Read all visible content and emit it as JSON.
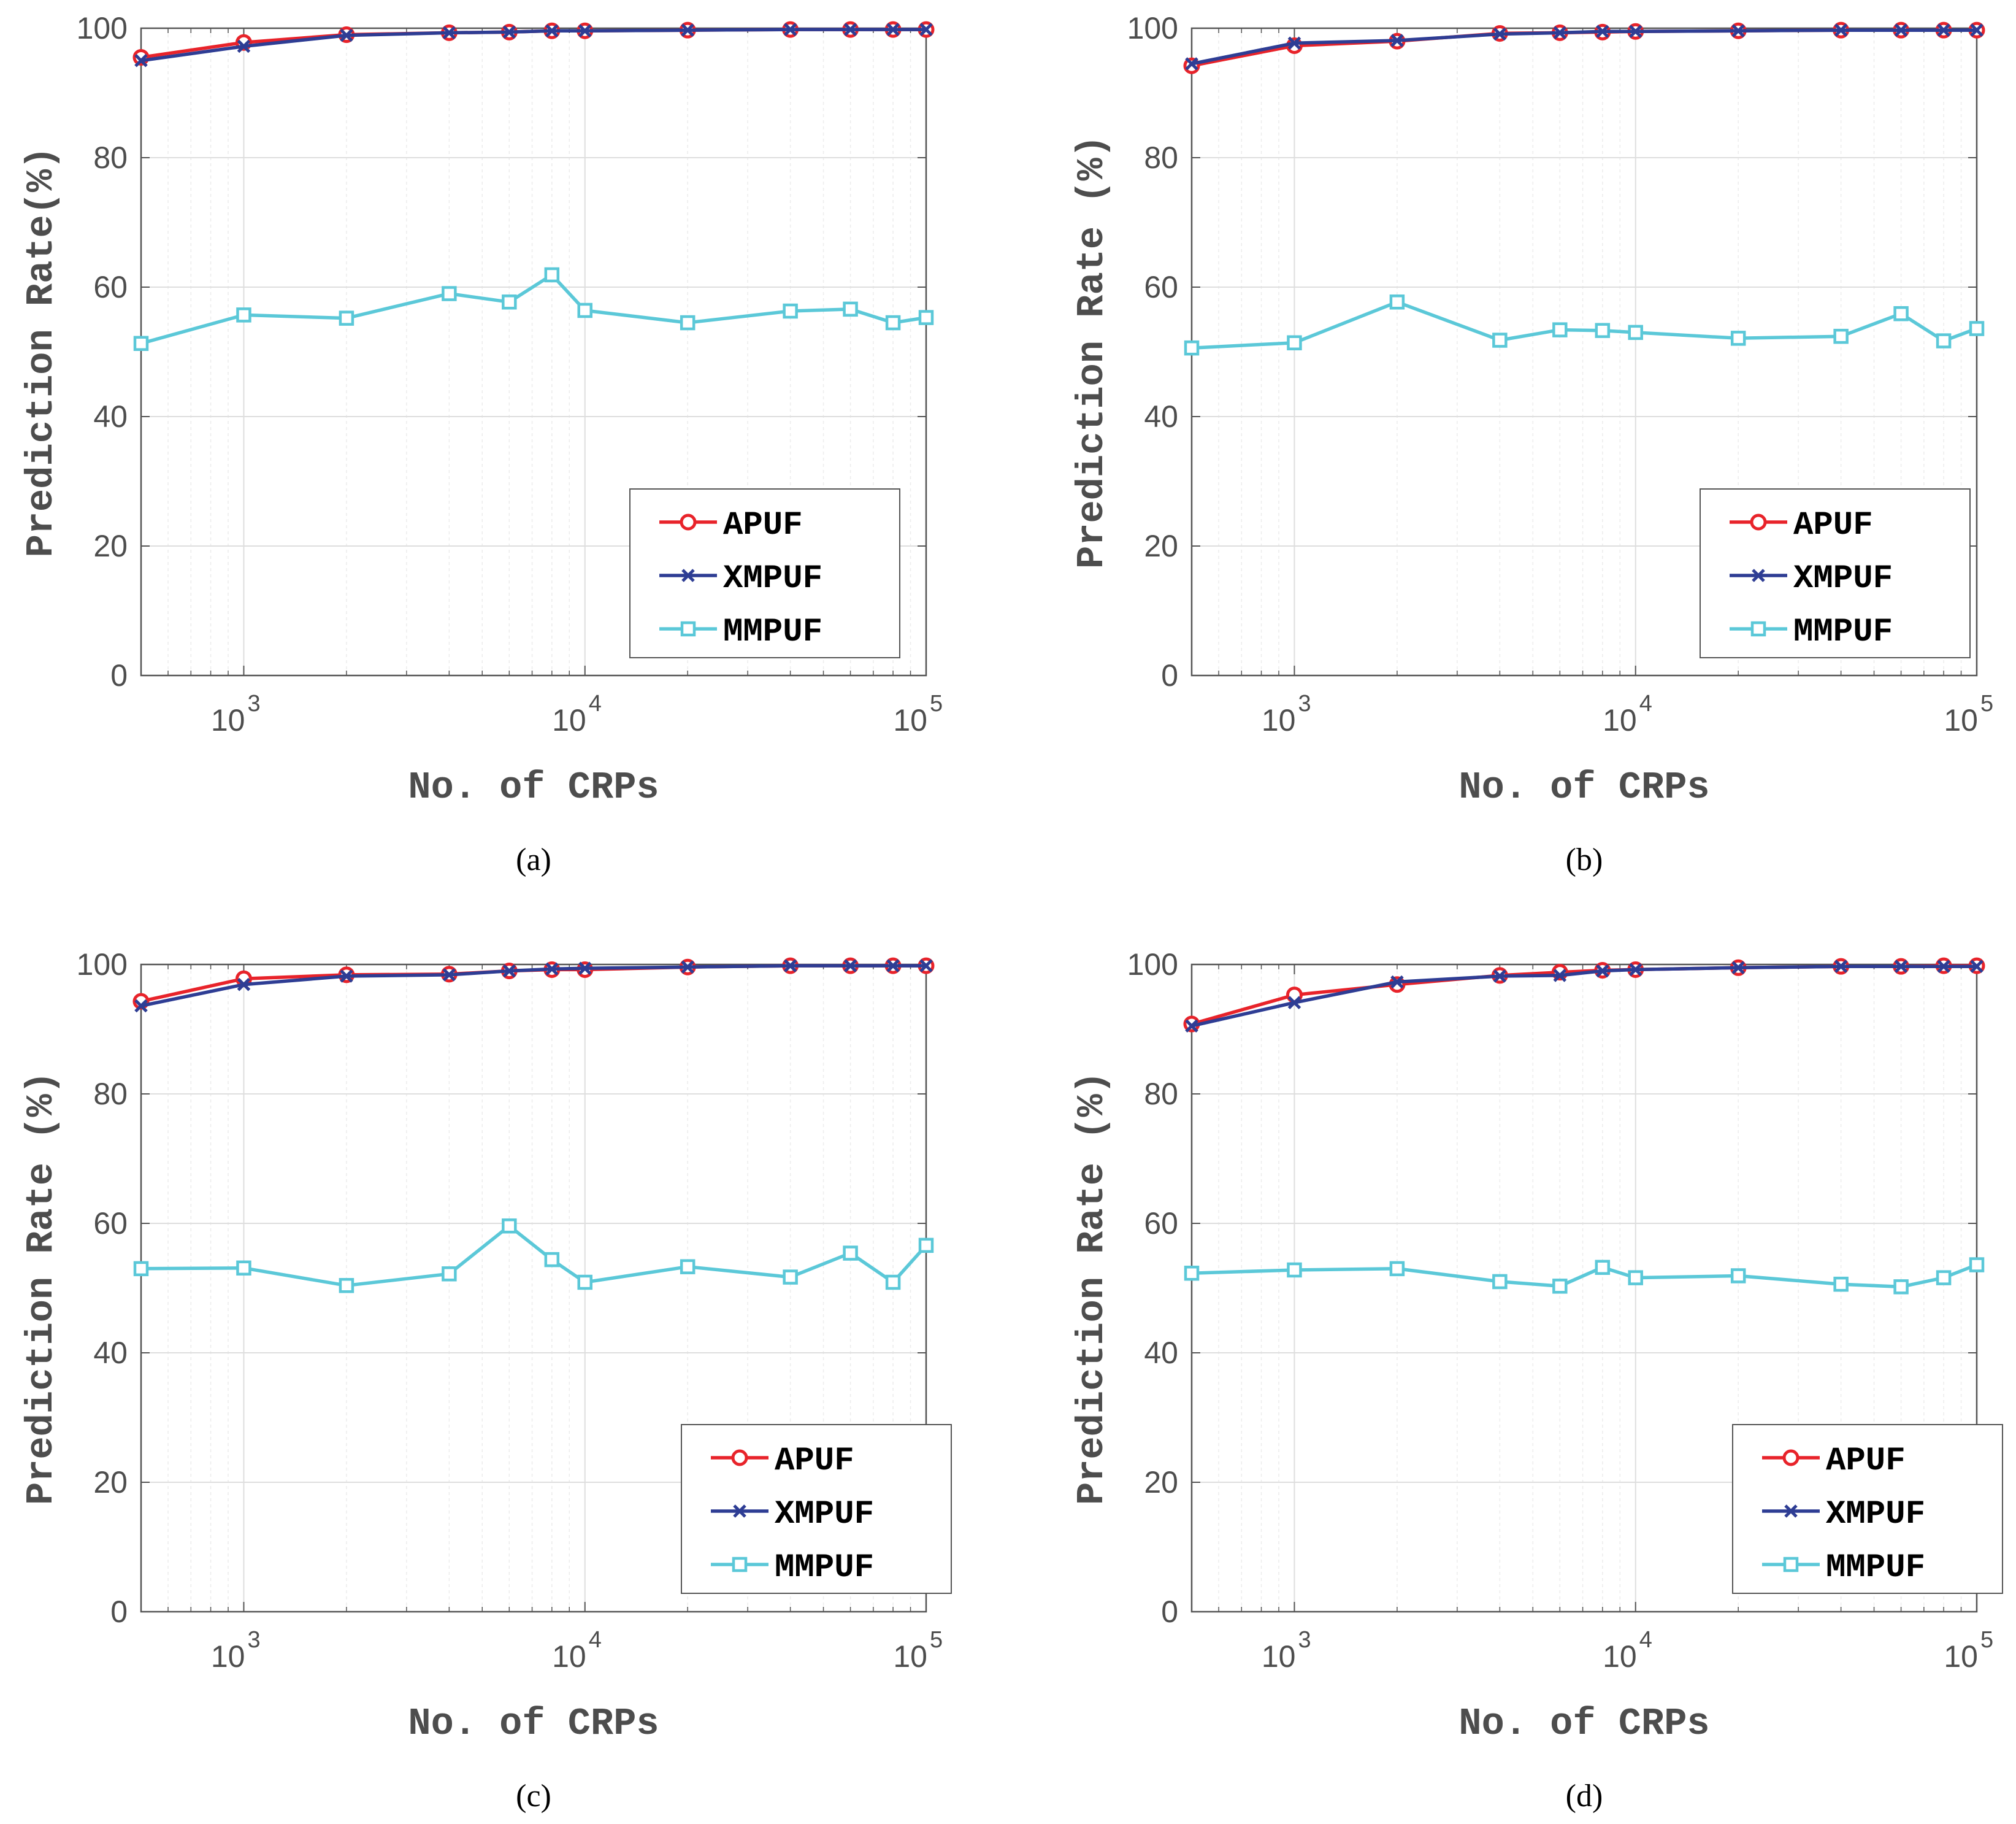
{
  "chart_data": [
    {
      "panel": "a",
      "type": "line",
      "caption": "(a)",
      "xlabel": "No. of CRPs",
      "ylabel": "Prediction Rate(%)",
      "xscale": "log",
      "xlim": [
        500,
        100000
      ],
      "ylim": [
        0,
        100
      ],
      "yticks": [
        "0",
        "20",
        "40",
        "60",
        "80",
        "100"
      ],
      "xticks": [
        {
          "base": "10",
          "exp": "3"
        },
        {
          "base": "10",
          "exp": "4"
        },
        {
          "base": "10",
          "exp": "5"
        }
      ],
      "grid": true,
      "legend_position": "bottom-right",
      "x": [
        500,
        1000,
        2000,
        4000,
        6000,
        8000,
        10000,
        20000,
        40000,
        60000,
        80000,
        100000
      ],
      "series": [
        {
          "name": "APUF",
          "color": "#e8232a",
          "marker": "circle",
          "values": [
            95.5,
            97.8,
            99.0,
            99.3,
            99.4,
            99.6,
            99.6,
            99.7,
            99.8,
            99.8,
            99.8,
            99.8
          ]
        },
        {
          "name": "XMPUF",
          "color": "#2e3d94",
          "marker": "x",
          "values": [
            95.0,
            97.2,
            98.9,
            99.3,
            99.4,
            99.6,
            99.6,
            99.7,
            99.8,
            99.8,
            99.8,
            99.8
          ]
        },
        {
          "name": "MMPUF",
          "color": "#5bc8d8",
          "marker": "square",
          "values": [
            51.3,
            55.7,
            55.2,
            59.0,
            57.7,
            61.9,
            56.4,
            54.5,
            56.3,
            56.6,
            54.5,
            55.3
          ]
        }
      ]
    },
    {
      "panel": "b",
      "type": "line",
      "caption": "(b)",
      "xlabel": "No. of CRPs",
      "ylabel": "Prediction Rate (%)",
      "xscale": "log",
      "xlim": [
        500,
        100000
      ],
      "ylim": [
        0,
        100
      ],
      "yticks": [
        "0",
        "20",
        "40",
        "60",
        "80",
        "100"
      ],
      "xticks": [
        {
          "base": "10",
          "exp": "3"
        },
        {
          "base": "10",
          "exp": "4"
        },
        {
          "base": "10",
          "exp": "5"
        }
      ],
      "grid": true,
      "legend_position": "bottom-right",
      "x": [
        500,
        1000,
        2000,
        4000,
        6000,
        8000,
        10000,
        20000,
        40000,
        60000,
        80000,
        100000
      ],
      "series": [
        {
          "name": "APUF",
          "color": "#e8232a",
          "marker": "circle",
          "values": [
            94.2,
            97.3,
            98.0,
            99.2,
            99.3,
            99.4,
            99.5,
            99.6,
            99.7,
            99.7,
            99.7,
            99.7
          ]
        },
        {
          "name": "XMPUF",
          "color": "#2e3d94",
          "marker": "x",
          "values": [
            94.5,
            97.7,
            98.1,
            99.1,
            99.3,
            99.5,
            99.5,
            99.6,
            99.7,
            99.7,
            99.7,
            99.7
          ]
        },
        {
          "name": "MMPUF",
          "color": "#5bc8d8",
          "marker": "square",
          "values": [
            50.6,
            51.4,
            57.7,
            51.8,
            53.4,
            53.3,
            53.0,
            52.1,
            52.4,
            55.9,
            51.7,
            53.6
          ]
        }
      ]
    },
    {
      "panel": "c",
      "type": "line",
      "caption": "(c)",
      "xlabel": "No. of CRPs",
      "ylabel": "Prediction Rate (%)",
      "xscale": "log",
      "xlim": [
        500,
        100000
      ],
      "ylim": [
        0,
        100
      ],
      "yticks": [
        "0",
        "20",
        "40",
        "60",
        "80",
        "100"
      ],
      "xticks": [
        {
          "base": "10",
          "exp": "3"
        },
        {
          "base": "10",
          "exp": "4"
        },
        {
          "base": "10",
          "exp": "5"
        }
      ],
      "grid": true,
      "legend_position": "bottom-right",
      "x": [
        500,
        1000,
        2000,
        4000,
        6000,
        8000,
        10000,
        20000,
        40000,
        60000,
        80000,
        100000
      ],
      "series": [
        {
          "name": "APUF",
          "color": "#e8232a",
          "marker": "circle",
          "values": [
            94.3,
            97.8,
            98.4,
            98.5,
            99.0,
            99.2,
            99.2,
            99.6,
            99.8,
            99.8,
            99.8,
            99.8
          ]
        },
        {
          "name": "XMPUF",
          "color": "#2e3d94",
          "marker": "x",
          "values": [
            93.6,
            96.9,
            98.2,
            98.4,
            99.0,
            99.3,
            99.4,
            99.6,
            99.8,
            99.8,
            99.8,
            99.8
          ]
        },
        {
          "name": "MMPUF",
          "color": "#5bc8d8",
          "marker": "square",
          "values": [
            53.0,
            53.1,
            50.4,
            52.2,
            59.6,
            54.4,
            50.9,
            53.3,
            51.7,
            55.4,
            50.9,
            56.6
          ]
        }
      ]
    },
    {
      "panel": "d",
      "type": "line",
      "caption": "(d)",
      "xlabel": "No. of CRPs",
      "ylabel": "Prediction Rate (%)",
      "xscale": "log",
      "xlim": [
        500,
        100000
      ],
      "ylim": [
        0,
        100
      ],
      "yticks": [
        "0",
        "20",
        "40",
        "60",
        "80",
        "100"
      ],
      "xticks": [
        {
          "base": "10",
          "exp": "3"
        },
        {
          "base": "10",
          "exp": "4"
        },
        {
          "base": "10",
          "exp": "5"
        }
      ],
      "grid": true,
      "legend_position": "bottom-right",
      "x": [
        500,
        1000,
        2000,
        4000,
        6000,
        8000,
        10000,
        20000,
        40000,
        60000,
        80000,
        100000
      ],
      "series": [
        {
          "name": "APUF",
          "color": "#e8232a",
          "marker": "circle",
          "values": [
            90.8,
            95.3,
            96.9,
            98.3,
            98.8,
            99.1,
            99.2,
            99.5,
            99.7,
            99.7,
            99.8,
            99.8
          ]
        },
        {
          "name": "XMPUF",
          "color": "#2e3d94",
          "marker": "x",
          "values": [
            90.5,
            94.1,
            97.3,
            98.2,
            98.3,
            99.0,
            99.2,
            99.5,
            99.7,
            99.7,
            99.7,
            99.7
          ]
        },
        {
          "name": "MMPUF",
          "color": "#5bc8d8",
          "marker": "square",
          "values": [
            52.3,
            52.8,
            53.0,
            51.0,
            50.3,
            53.2,
            51.6,
            51.9,
            50.6,
            50.2,
            51.6,
            53.6
          ]
        }
      ]
    }
  ]
}
